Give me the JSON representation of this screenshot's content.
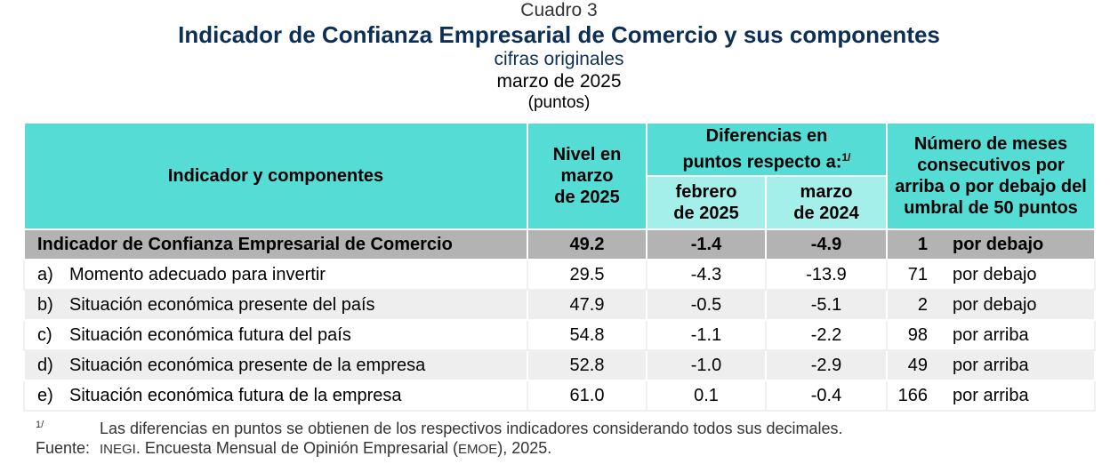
{
  "header": {
    "cuadro": "Cuadro 3",
    "title": "Indicador de Confianza Empresarial de Comercio y sus componentes",
    "subtitle": "cifras originales",
    "date": "marzo de 2025",
    "units": "(puntos)"
  },
  "table": {
    "col_indicator": "Indicador y componentes",
    "col_level_1": "Nivel en",
    "col_level_2": "marzo",
    "col_level_3": "de 2025",
    "col_diff_1": "Diferencias en",
    "col_diff_2": "puntos respecto a:",
    "col_diff_sup": "1/",
    "col_feb_1": "febrero",
    "col_feb_2": "de 2025",
    "col_mar_1": "marzo",
    "col_mar_2": "de 2024",
    "col_months_1": "Número de meses",
    "col_months_2": "consecutivos por",
    "col_months_3": "arriba o por debajo del",
    "col_months_4": "umbral de 50 puntos",
    "main_row": {
      "label": "Indicador de Confianza Empresarial de Comercio",
      "level": "49.2",
      "feb": "-1.4",
      "mar": "-4.9",
      "count": "1",
      "dir": "por debajo"
    },
    "rows": [
      {
        "letter": "a)",
        "label": "Momento adecuado para invertir",
        "level": "29.5",
        "feb": "-4.3",
        "mar": "-13.9",
        "count": "71",
        "dir": "por debajo"
      },
      {
        "letter": "b)",
        "label": "Situación económica presente del país",
        "level": "47.9",
        "feb": "-0.5",
        "mar": "-5.1",
        "count": "2",
        "dir": "por debajo"
      },
      {
        "letter": "c)",
        "label": "Situación económica futura del país",
        "level": "54.8",
        "feb": "-1.1",
        "mar": "-2.2",
        "count": "98",
        "dir": "por arriba"
      },
      {
        "letter": "d)",
        "label": "Situación económica presente de la empresa",
        "level": "52.8",
        "feb": "-1.0",
        "mar": "-2.9",
        "count": "49",
        "dir": "por arriba"
      },
      {
        "letter": "e)",
        "label": "Situación económica futura de la empresa",
        "level": "61.0",
        "feb": "0.1",
        "mar": "-0.4",
        "count": "166",
        "dir": "por arriba"
      }
    ]
  },
  "notes": {
    "fn_mark": "1/",
    "fn_text": "Las diferencias en puntos se obtienen de los respectivos indicadores considerando todos sus decimales.",
    "src_label": "Fuente:",
    "src_org": "INEGI",
    "src_mid": ". Encuesta Mensual de Opinión Empresarial (",
    "src_abbr": "EMOE",
    "src_end": "), 2025."
  }
}
